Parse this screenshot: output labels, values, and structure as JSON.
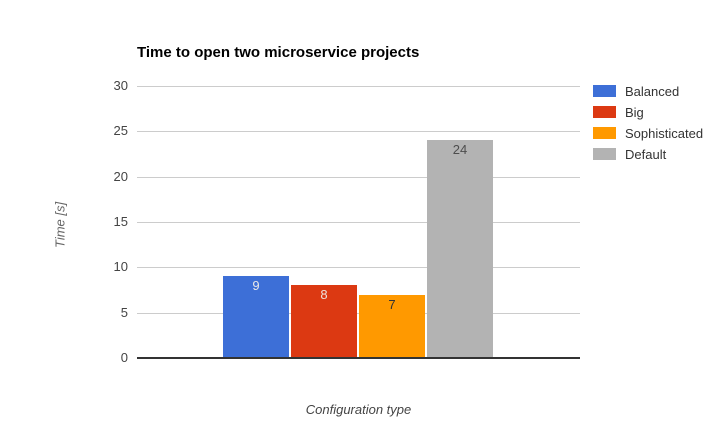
{
  "chart_data": {
    "type": "bar",
    "title": "Time to open two microservice projects",
    "xlabel": "Configuration type",
    "ylabel": "Time [s]",
    "series": [
      {
        "name": "Balanced",
        "value": 9,
        "color": "#3d6fd7",
        "label_color": "#e8e8e8"
      },
      {
        "name": "Big",
        "value": 8,
        "color": "#dc3912",
        "label_color": "#eddfda"
      },
      {
        "name": "Sophisticated",
        "value": 7,
        "color": "#ff9900",
        "label_color": "#333333"
      },
      {
        "name": "Default",
        "value": 24,
        "color": "#b3b3b3",
        "label_color": "#4d4d4d"
      }
    ],
    "yticks": [
      0,
      5,
      10,
      15,
      20,
      25,
      30
    ],
    "ylim": [
      0,
      30
    ],
    "grid": true,
    "legend_position": "right",
    "colors": {
      "axis_line": "#333333",
      "gridline": "#cccccc",
      "tick_text": "#444444",
      "background": "#ffffff"
    }
  }
}
